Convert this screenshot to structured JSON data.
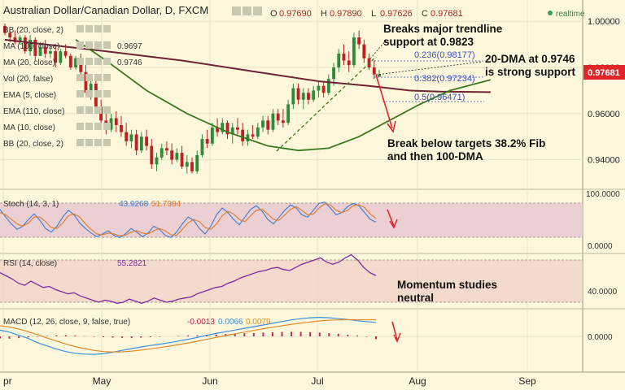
{
  "header": {
    "symbol": "Australian Dollar/Canadian Dollar, D, FXCM",
    "ohlc": [
      {
        "k": "O",
        "v": "0.97690"
      },
      {
        "k": "H",
        "v": "0.97890"
      },
      {
        "k": "L",
        "v": "0.97626"
      },
      {
        "k": "C",
        "v": "0.97681"
      }
    ],
    "realtime": "realtime"
  },
  "indicators": [
    {
      "label": "BB (20, close, 2)"
    },
    {
      "label": "MA (100, close)",
      "value": "0.9697"
    },
    {
      "label": "MA (20, close)",
      "value": "0.9746"
    },
    {
      "label": "Vol (20, false)"
    },
    {
      "label": "EMA (5, close)"
    },
    {
      "label": "EMA (110, close)"
    },
    {
      "label": "MA (10, close)"
    },
    {
      "label": "BB (20, close, 2)"
    }
  ],
  "price_axis": {
    "ticks": [
      "1.00000",
      "0.98000",
      "0.96000",
      "0.94000"
    ],
    "current": "0.97681"
  },
  "fib_levels": [
    {
      "label": "0.236(0.98177)"
    },
    {
      "label": "0.382(0.97234)"
    },
    {
      "label": "0.5(0.96471)"
    }
  ],
  "annotations": {
    "trendline": [
      "Breaks major trendline",
      "support at 0.9823"
    ],
    "dma": [
      "20-DMA at 0.9746",
      "is strong support"
    ],
    "break": [
      "Break below targets 38.2% Fib",
      "and then 100-DMA"
    ],
    "momentum": [
      "Momentum studies",
      "neutral"
    ]
  },
  "stoch": {
    "label": "Stoch (14, 3, 1)",
    "k": "43.9268",
    "d": "51.7384",
    "ticks": [
      "100.0000",
      "0.0000"
    ]
  },
  "rsi": {
    "label": "RSI (14, close)",
    "value": "55.2821",
    "ticks": [
      "40.0000"
    ]
  },
  "macd": {
    "label": "MACD (12, 26, close, 9, false, true)",
    "hist": "-0.0013",
    "macd": "0.0066",
    "signal": "0.0079",
    "ticks": [
      "0.0000"
    ]
  },
  "time_axis": [
    "pr",
    "May",
    "Jun",
    "Jul",
    "Aug",
    "Sep"
  ],
  "colors": {
    "up": "#2e8b3a",
    "down": "#c02020",
    "ma100": "#6e2436",
    "ma20": "#3a7a1e",
    "accent": "#e0262a"
  },
  "chart_data": [
    {
      "type": "candlestick",
      "title": "Australian Dollar/Canadian Dollar, D, FXCM",
      "ylim": [
        0.93,
        1.005
      ],
      "y_ticks": [
        1.0,
        0.98,
        0.96,
        0.94
      ],
      "x_months": [
        "pr",
        "May",
        "Jun",
        "Jul",
        "Aug",
        "Sep"
      ],
      "candles": [
        [
          0.998,
          0.999,
          0.994,
          0.995
        ],
        [
          0.995,
          0.996,
          0.991,
          0.993
        ],
        [
          0.993,
          0.996,
          0.99,
          0.991
        ],
        [
          0.991,
          0.994,
          0.99,
          0.993
        ],
        [
          0.993,
          0.994,
          0.986,
          0.987
        ],
        [
          0.987,
          0.994,
          0.985,
          0.992
        ],
        [
          0.992,
          0.993,
          0.983,
          0.985
        ],
        [
          0.985,
          0.991,
          0.985,
          0.989
        ],
        [
          0.989,
          0.992,
          0.984,
          0.986
        ],
        [
          0.986,
          0.989,
          0.984,
          0.987
        ],
        [
          0.987,
          0.99,
          0.98,
          0.982
        ],
        [
          0.982,
          0.988,
          0.981,
          0.987
        ],
        [
          0.987,
          0.99,
          0.984,
          0.985
        ],
        [
          0.985,
          0.986,
          0.979,
          0.98
        ],
        [
          0.98,
          0.985,
          0.979,
          0.984
        ],
        [
          0.984,
          0.986,
          0.977,
          0.978
        ],
        [
          0.978,
          0.981,
          0.967,
          0.969
        ],
        [
          0.969,
          0.975,
          0.966,
          0.973
        ],
        [
          0.973,
          0.975,
          0.961,
          0.963
        ],
        [
          0.963,
          0.966,
          0.956,
          0.957
        ],
        [
          0.957,
          0.96,
          0.951,
          0.953
        ],
        [
          0.953,
          0.96,
          0.952,
          0.958
        ],
        [
          0.958,
          0.961,
          0.952,
          0.955
        ],
        [
          0.955,
          0.959,
          0.95,
          0.952
        ],
        [
          0.952,
          0.956,
          0.946,
          0.948
        ],
        [
          0.948,
          0.953,
          0.945,
          0.951
        ],
        [
          0.951,
          0.953,
          0.942,
          0.944
        ],
        [
          0.944,
          0.952,
          0.943,
          0.95
        ],
        [
          0.95,
          0.953,
          0.944,
          0.946
        ],
        [
          0.946,
          0.949,
          0.936,
          0.938
        ],
        [
          0.938,
          0.943,
          0.935,
          0.941
        ],
        [
          0.941,
          0.947,
          0.94,
          0.945
        ],
        [
          0.945,
          0.948,
          0.942,
          0.944
        ],
        [
          0.944,
          0.947,
          0.938,
          0.94
        ],
        [
          0.94,
          0.945,
          0.939,
          0.943
        ],
        [
          0.943,
          0.946,
          0.936,
          0.937
        ],
        [
          0.937,
          0.942,
          0.934,
          0.939
        ],
        [
          0.939,
          0.941,
          0.934,
          0.935
        ],
        [
          0.935,
          0.944,
          0.934,
          0.942
        ],
        [
          0.942,
          0.951,
          0.941,
          0.949
        ],
        [
          0.949,
          0.953,
          0.945,
          0.947
        ],
        [
          0.947,
          0.956,
          0.946,
          0.954
        ],
        [
          0.954,
          0.958,
          0.95,
          0.952
        ],
        [
          0.952,
          0.958,
          0.951,
          0.956
        ],
        [
          0.956,
          0.957,
          0.949,
          0.951
        ],
        [
          0.951,
          0.956,
          0.947,
          0.954
        ],
        [
          0.954,
          0.958,
          0.951,
          0.953
        ],
        [
          0.953,
          0.956,
          0.946,
          0.948
        ],
        [
          0.948,
          0.953,
          0.946,
          0.951
        ],
        [
          0.951,
          0.955,
          0.949,
          0.95
        ],
        [
          0.95,
          0.956,
          0.949,
          0.954
        ],
        [
          0.954,
          0.959,
          0.952,
          0.957
        ],
        [
          0.957,
          0.959,
          0.951,
          0.953
        ],
        [
          0.953,
          0.962,
          0.952,
          0.96
        ],
        [
          0.96,
          0.962,
          0.955,
          0.957
        ],
        [
          0.957,
          0.962,
          0.954,
          0.956
        ],
        [
          0.956,
          0.966,
          0.955,
          0.964
        ],
        [
          0.964,
          0.973,
          0.962,
          0.971
        ],
        [
          0.971,
          0.973,
          0.964,
          0.966
        ],
        [
          0.966,
          0.971,
          0.962,
          0.969
        ],
        [
          0.969,
          0.971,
          0.964,
          0.966
        ],
        [
          0.966,
          0.972,
          0.965,
          0.97
        ],
        [
          0.97,
          0.974,
          0.967,
          0.972
        ],
        [
          0.972,
          0.974,
          0.967,
          0.969
        ],
        [
          0.969,
          0.977,
          0.968,
          0.975
        ],
        [
          0.975,
          0.982,
          0.972,
          0.98
        ],
        [
          0.98,
          0.988,
          0.978,
          0.986
        ],
        [
          0.986,
          0.99,
          0.981,
          0.983
        ],
        [
          0.983,
          0.987,
          0.978,
          0.981
        ],
        [
          0.981,
          0.995,
          0.98,
          0.993
        ],
        [
          0.993,
          0.996,
          0.988,
          0.99
        ],
        [
          0.99,
          0.992,
          0.982,
          0.984
        ],
        [
          0.984,
          0.986,
          0.979,
          0.98
        ],
        [
          0.98,
          0.983,
          0.975,
          0.977
        ],
        [
          0.976,
          0.979,
          0.976,
          0.977
        ]
      ],
      "ma100": [
        [
          0,
          0.992
        ],
        [
          8,
          0.99
        ],
        [
          20,
          0.987
        ],
        [
          35,
          0.983
        ],
        [
          50,
          0.978
        ],
        [
          62,
          0.974
        ],
        [
          72,
          0.972
        ],
        [
          80,
          0.97
        ],
        [
          86,
          0.9695
        ],
        [
          96,
          0.9693
        ]
      ],
      "ma20": [
        [
          14,
          0.992
        ],
        [
          20,
          0.983
        ],
        [
          28,
          0.97
        ],
        [
          36,
          0.96
        ],
        [
          44,
          0.952
        ],
        [
          52,
          0.946
        ],
        [
          58,
          0.944
        ],
        [
          64,
          0.945
        ],
        [
          70,
          0.95
        ],
        [
          76,
          0.957
        ],
        [
          82,
          0.964
        ],
        [
          88,
          0.97
        ],
        [
          96,
          0.9746
        ]
      ]
    },
    {
      "type": "line",
      "title": "Stoch (14, 3, 1)",
      "ylim": [
        0,
        100
      ],
      "series": [
        {
          "name": "%K",
          "values": [
            72,
            55,
            40,
            28,
            35,
            50,
            62,
            48,
            30,
            22,
            35,
            55,
            70,
            60,
            42,
            30,
            20,
            12,
            18,
            25,
            15,
            10,
            18,
            30,
            22,
            12,
            20,
            35,
            28,
            15,
            10,
            22,
            40,
            55,
            48,
            30,
            18,
            35,
            60,
            75,
            65,
            50,
            38,
            55,
            72,
            80,
            68,
            50,
            40,
            55,
            70,
            82,
            75,
            60,
            55,
            70,
            85,
            88,
            75,
            60,
            65,
            78,
            85,
            80,
            65,
            50,
            43.9
          ]
        },
        {
          "name": "%D",
          "values": [
            65,
            60,
            50,
            40,
            35,
            42,
            55,
            55,
            45,
            32,
            30,
            42,
            58,
            62,
            55,
            40,
            28,
            18,
            16,
            20,
            18,
            14,
            15,
            22,
            25,
            20,
            18,
            25,
            30,
            25,
            16,
            15,
            28,
            42,
            50,
            45,
            32,
            28,
            40,
            58,
            68,
            62,
            50,
            45,
            58,
            70,
            72,
            62,
            50,
            48,
            60,
            72,
            78,
            70,
            60,
            62,
            75,
            84,
            82,
            70,
            65,
            70,
            80,
            82,
            76,
            62,
            51.7
          ]
        }
      ]
    },
    {
      "type": "line",
      "title": "RSI (14, close)",
      "series": [
        {
          "name": "RSI",
          "values": [
            58,
            55,
            52,
            48,
            46,
            50,
            47,
            44,
            45,
            42,
            40,
            38,
            39,
            36,
            34,
            32,
            30,
            32,
            31,
            29,
            30,
            33,
            31,
            29,
            31,
            34,
            32,
            30,
            31,
            33,
            34,
            35,
            38,
            40,
            42,
            44,
            45,
            48,
            50,
            53,
            55,
            57,
            59,
            60,
            62,
            63,
            61,
            60,
            63,
            66,
            68,
            70,
            72,
            68,
            66,
            68,
            72,
            75,
            70,
            63,
            58,
            55.3
          ]
        }
      ]
    },
    {
      "type": "line",
      "title": "MACD (12, 26, close, 9, false, true)",
      "series": [
        {
          "name": "Histogram",
          "values": [
            -0.001,
            -0.0011,
            -0.0008,
            -0.0005,
            -0.0002,
            0.0002,
            0.0005,
            0.0006,
            0.0004,
            0.0001,
            -0.0002,
            -0.0004,
            -0.0006,
            -0.0007,
            -0.0008,
            -0.0006,
            -0.0004,
            -0.0002,
            0,
            0.0002,
            0.0004,
            0.0005,
            0.0007,
            0.0009,
            0.0011,
            0.0013,
            0.0015,
            0.0016,
            0.0018,
            0.002,
            0.0021,
            0.0022,
            0.0021,
            0.002,
            0.0018,
            0.0015,
            0.0012,
            0.0008,
            0.0004,
            -0.0002,
            -0.0013
          ]
        },
        {
          "name": "MACD",
          "values": [
            0.003,
            0.002,
            0.0005,
            -0.001,
            -0.003,
            -0.0045,
            -0.006,
            -0.0072,
            -0.008,
            -0.0084,
            -0.0085,
            -0.0082,
            -0.0075,
            -0.0066,
            -0.0058,
            -0.005,
            -0.0043,
            -0.0037,
            -0.003,
            -0.0022,
            -0.0014,
            -0.0005,
            0.0005,
            0.0014,
            0.0022,
            0.003,
            0.0038,
            0.0046,
            0.0054,
            0.0062,
            0.007,
            0.0078,
            0.0084,
            0.0088,
            0.009,
            0.0088,
            0.0084,
            0.008,
            0.0074,
            0.007,
            0.0066
          ]
        },
        {
          "name": "Signal",
          "values": [
            0.005,
            0.0045,
            0.0035,
            0.0022,
            0.0008,
            -0.0008,
            -0.0022,
            -0.0036,
            -0.0048,
            -0.0058,
            -0.0066,
            -0.0072,
            -0.0074,
            -0.0073,
            -0.007,
            -0.0065,
            -0.0059,
            -0.0053,
            -0.0046,
            -0.0039,
            -0.0031,
            -0.0023,
            -0.0014,
            -0.0005,
            0.0004,
            0.0012,
            0.002,
            0.0028,
            0.0036,
            0.0043,
            0.005,
            0.0057,
            0.0063,
            0.0068,
            0.0073,
            0.0076,
            0.0078,
            0.0079,
            0.0079,
            0.0079,
            0.0079
          ]
        }
      ]
    }
  ]
}
